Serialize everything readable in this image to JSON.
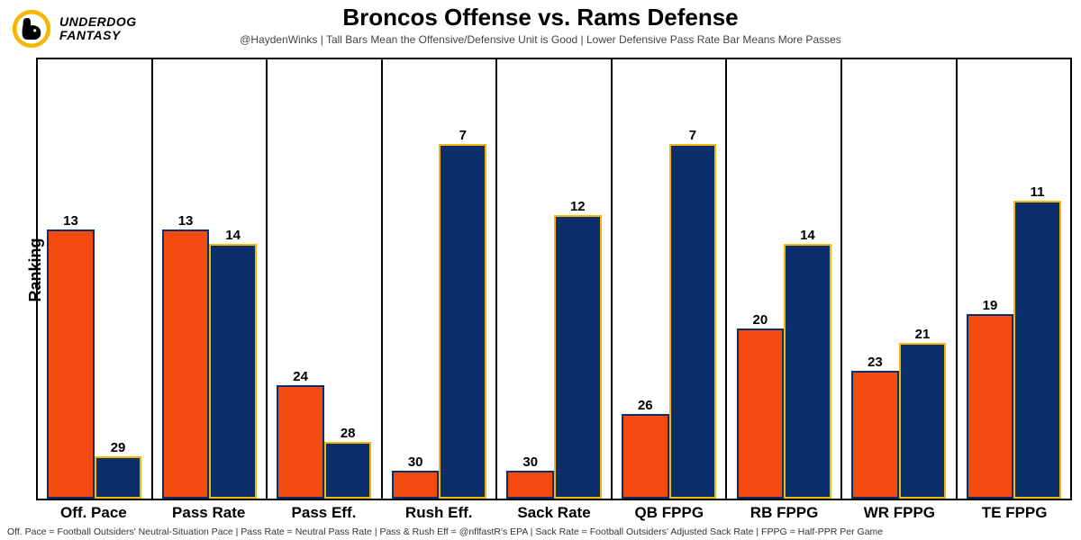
{
  "logo": {
    "line1": "UNDERDOG",
    "line2": "FANTASY",
    "ring_color": "#f5b800",
    "dog_color": "#000000"
  },
  "title": "Broncos Offense vs. Rams Defense",
  "subtitle": "@HaydenWinks | Tall Bars Mean the Offensive/Defensive Unit is Good | Lower Defensive Pass Rate Bar Means More Passes",
  "ylabel": "Ranking",
  "footnote": "Off. Pace = Football Outsiders' Neutral-Situation Pace | Pass Rate = Neutral Pass Rate | Pass & Rush Eff = @nflfastR's EPA | Sack Rate = Football Outsiders' Adjusted Sack Rate | FPPG = Half-PPR Per Game",
  "chart": {
    "type": "bar",
    "rank_min": 1,
    "rank_max": 32,
    "series": [
      {
        "name": "Broncos Offense",
        "fill": "#f24a0f",
        "border": "#0a2f6b"
      },
      {
        "name": "Rams Defense",
        "fill": "#0a2f6b",
        "border": "#f5b800"
      }
    ],
    "categories": [
      {
        "label": "Off. Pace",
        "values": [
          13,
          29
        ]
      },
      {
        "label": "Pass Rate",
        "values": [
          13,
          14
        ]
      },
      {
        "label": "Pass Eff.",
        "values": [
          24,
          28
        ]
      },
      {
        "label": "Rush Eff.",
        "values": [
          30,
          7
        ]
      },
      {
        "label": "Sack Rate",
        "values": [
          30,
          12
        ]
      },
      {
        "label": "QB FPPG",
        "values": [
          26,
          7
        ]
      },
      {
        "label": "RB FPPG",
        "values": [
          20,
          14
        ]
      },
      {
        "label": "WR FPPG",
        "values": [
          23,
          21
        ]
      },
      {
        "label": "TE FPPG",
        "values": [
          19,
          11
        ]
      }
    ],
    "bar_border_width": 2,
    "background_color": "#ffffff",
    "axis_color": "#000000",
    "title_fontsize": 26,
    "subtitle_fontsize": 12,
    "xlabel_fontsize": 17,
    "barlabel_fontsize": 15
  }
}
